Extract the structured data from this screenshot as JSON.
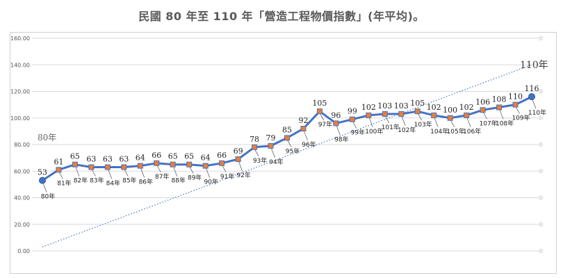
{
  "chart_data": {
    "type": "line",
    "title": "民國 80 年至 110 年「營造工程物價指數」(年平均)。",
    "xlabel": "",
    "ylabel": "",
    "ylim": [
      0,
      160
    ],
    "yticks": [
      "0.00",
      "20.00",
      "40.00",
      "60.00",
      "80.00",
      "100.00",
      "120.00",
      "140.00",
      "160.00"
    ],
    "grid": true,
    "legend": "none",
    "categories": [
      "80年",
      "81年",
      "82年",
      "83年",
      "84年",
      "85年",
      "86年",
      "87年",
      "88年",
      "89年",
      "90年",
      "91年",
      "92年",
      "93年",
      "94年",
      "95年",
      "96年",
      "97年",
      "98年",
      "99年",
      "100年",
      "101年",
      "102年",
      "103年",
      "104年",
      "105年",
      "106年",
      "107年",
      "108年",
      "109年",
      "110年"
    ],
    "series": [
      {
        "values": [
          53,
          61,
          65,
          63,
          63,
          63,
          64,
          66,
          65,
          65,
          64,
          66,
          69,
          78,
          79,
          85,
          92,
          105,
          96,
          99,
          102,
          103,
          103,
          105,
          102,
          100,
          102,
          106,
          108,
          110,
          116
        ]
      }
    ],
    "value_labels": [
      "53",
      "61",
      "65",
      "63",
      "63",
      "63",
      "64",
      "66",
      "65",
      "65",
      "64",
      "66",
      "69",
      "78",
      "79",
      "85",
      "92",
      "105",
      "96",
      "99",
      "102",
      "103",
      "103",
      "105",
      "102",
      "100",
      "102",
      "106",
      "108",
      "110",
      "116"
    ],
    "trendline": {
      "style": "dotted",
      "from_value": 3,
      "to_value": 140
    },
    "annotations": {
      "start": "80年",
      "end": "110年"
    },
    "colors": {
      "line": "#4472c4",
      "marker": "#ed7d31",
      "trend": "#4472c4",
      "grid": "#d9d9d9"
    }
  }
}
